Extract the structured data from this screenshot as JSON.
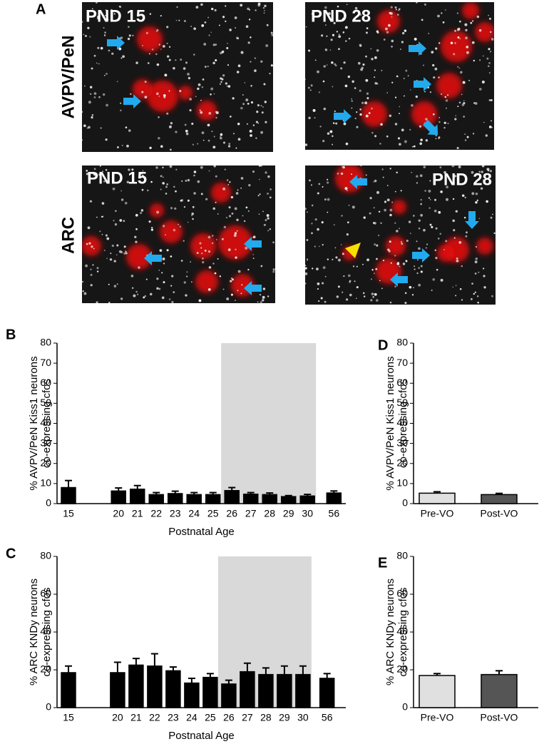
{
  "panel_a": {
    "panel": "A",
    "rows": [
      "AVPV/PeN",
      "ARC"
    ],
    "images": [
      [
        "PND 15",
        "PND 28"
      ],
      [
        "PND 15",
        "PND 28"
      ]
    ]
  },
  "chart_data": [
    {
      "type": "bar",
      "panel": "B",
      "ylabel": [
        "% AVPV/PeN Kiss1 neurons",
        "co-expressing cfos"
      ],
      "xlabel": "Postnatal Age",
      "categories": [
        "15",
        "20",
        "21",
        "22",
        "23",
        "24",
        "25",
        "26",
        "27",
        "28",
        "29",
        "30",
        "56"
      ],
      "values": [
        8,
        6.3,
        7.2,
        4.5,
        5,
        4.5,
        4.5,
        6.5,
        4.7,
        4.5,
        3.5,
        3.8,
        5.3
      ],
      "errors": [
        3.5,
        1.5,
        1.8,
        1,
        1.2,
        1,
        1,
        1.5,
        0.8,
        0.8,
        0.5,
        0.8,
        1
      ],
      "color": "#000000",
      "highlight": {
        "from": "26",
        "to": "30",
        "color": "#d9d9d9"
      },
      "ylim": [
        0,
        80
      ],
      "yticks": [
        0,
        10,
        20,
        30,
        40,
        50,
        60,
        70,
        80
      ]
    },
    {
      "type": "bar",
      "panel": "C",
      "ylabel": [
        "% ARC KNDy neurons",
        "co-expressing cfos"
      ],
      "xlabel": "Postnatal Age",
      "categories": [
        "15",
        "20",
        "21",
        "22",
        "23",
        "24",
        "25",
        "26",
        "27",
        "28",
        "29",
        "30",
        "56"
      ],
      "values": [
        18.5,
        18.5,
        22.5,
        22,
        19.5,
        13,
        16,
        12.5,
        19,
        17.5,
        17.5,
        17.5,
        15.5
      ],
      "errors": [
        3.5,
        5.5,
        3.5,
        6.5,
        2,
        2.5,
        2,
        2,
        4.5,
        3.5,
        4.5,
        4.5,
        2.5
      ],
      "color": "#000000",
      "highlight": {
        "from": "26",
        "to": "30",
        "color": "#d9d9d9"
      },
      "ylim": [
        0,
        80
      ],
      "yticks": [
        0,
        20,
        40,
        60,
        80
      ]
    },
    {
      "type": "bar",
      "panel": "D",
      "ylabel": [
        "% AVPV/PeN Kiss1 neurons",
        "co-expressing cfos"
      ],
      "categories": [
        "Pre-VO",
        "Post-VO"
      ],
      "values": [
        5.2,
        4.5
      ],
      "errors": [
        0.7,
        0.6
      ],
      "colors": [
        "#e0e0e0",
        "#555555"
      ],
      "ylim": [
        0,
        80
      ],
      "yticks": [
        0,
        10,
        20,
        30,
        40,
        50,
        60,
        70,
        80
      ]
    },
    {
      "type": "bar",
      "panel": "E",
      "ylabel": [
        "% ARC KNDy neurons",
        "co-expressing cfos"
      ],
      "categories": [
        "Pre-VO",
        "Post-VO"
      ],
      "values": [
        17,
        17.5
      ],
      "errors": [
        1,
        2
      ],
      "colors": [
        "#e0e0e0",
        "#555555"
      ],
      "ylim": [
        0,
        80
      ],
      "yticks": [
        0,
        20,
        40,
        60,
        80
      ]
    }
  ]
}
